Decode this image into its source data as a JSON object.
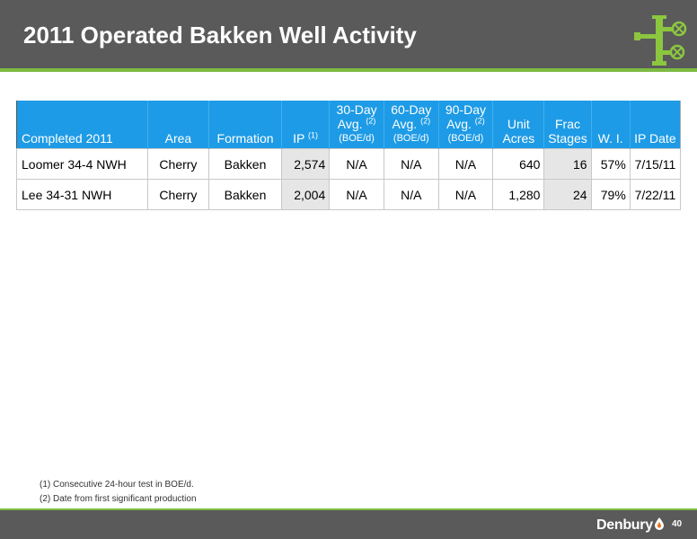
{
  "header": {
    "title": "2011 Operated Bakken Well Activity",
    "background": "#5a5a5a",
    "accent": "#7dbb42",
    "icon": "wellhead-icon"
  },
  "table": {
    "header_color": "#1e9be6",
    "columns": [
      {
        "label": "Completed 2011"
      },
      {
        "label": "Area"
      },
      {
        "label": "Formation"
      },
      {
        "label": "IP",
        "sup": "(1)"
      },
      {
        "label": "30-Day Avg.",
        "sup": "(2)",
        "unit": "(BOE/d)"
      },
      {
        "label": "60-Day Avg.",
        "sup": "(2)",
        "unit": "(BOE/d)"
      },
      {
        "label": "90-Day Avg.",
        "sup": "(2)",
        "unit": "(BOE/d)"
      },
      {
        "label": "Unit Acres"
      },
      {
        "label": "Frac Stages"
      },
      {
        "label": "W. I."
      },
      {
        "label": "IP Date"
      }
    ],
    "rows": [
      [
        "Loomer 34-4 NWH",
        "Cherry",
        "Bakken",
        "2,574",
        "N/A",
        "N/A",
        "N/A",
        "640",
        "16",
        "57%",
        "7/15/11"
      ],
      [
        "Lee 34-31 NWH",
        "Cherry",
        "Bakken",
        "2,004",
        "N/A",
        "N/A",
        "N/A",
        "1,280",
        "24",
        "79%",
        "7/22/11"
      ]
    ]
  },
  "footnotes": [
    "(1) Consecutive 24-hour test in BOE/d.",
    "(2) Date from first significant production"
  ],
  "footer": {
    "brand": "Denbury",
    "brand_icon": "drop-icon",
    "page_number": "40"
  }
}
